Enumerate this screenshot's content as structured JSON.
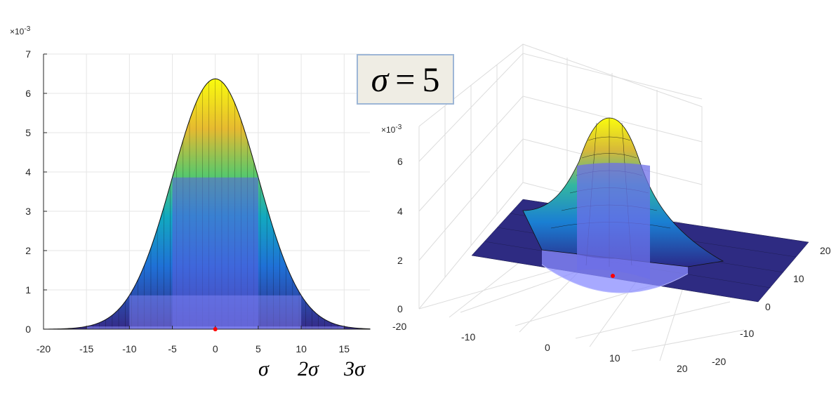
{
  "formula": {
    "symbol": "σ",
    "equals": "=",
    "value": "5"
  },
  "chart_data": [
    {
      "type": "area",
      "view": "2D side projection of 3D Gaussian surface",
      "sigma": 5,
      "xlim": [
        -20,
        18
      ],
      "ylim": [
        0,
        7
      ],
      "y_exponent_label": "×10",
      "y_exponent_power": "-3",
      "xticks": [
        "-20",
        "-15",
        "-10",
        "-5",
        "0",
        "5",
        "10",
        "15"
      ],
      "yticks": [
        "0",
        "1",
        "2",
        "3",
        "4",
        "5",
        "6",
        "7"
      ],
      "peak_value": 6.37,
      "sigma_band_heights": [
        3.86,
        0.86,
        0.07
      ],
      "sigma_labels": [
        "σ",
        "2σ",
        "3σ"
      ],
      "grid": true,
      "colormap": "parula",
      "center_marker": {
        "x": 0,
        "y": 0,
        "color": "#ff0000"
      }
    },
    {
      "type": "surface3d",
      "view": "3D perspective view",
      "sigma": 5,
      "z_exponent_label": "×10",
      "z_exponent_power": "-3",
      "zticks": [
        "0",
        "2",
        "4",
        "6"
      ],
      "xticks": [
        "-20",
        "-10",
        "0",
        "10",
        "20"
      ],
      "yticks": [
        "-20",
        "-10",
        "0",
        "10",
        "20"
      ],
      "grid": true,
      "colormap": "parula",
      "center_marker": {
        "x": 0,
        "y": 0,
        "color": "#ff0000"
      }
    }
  ]
}
